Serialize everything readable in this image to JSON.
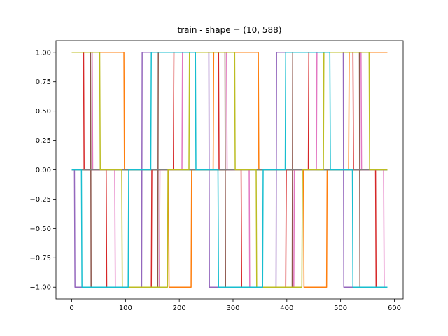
{
  "chart_data": {
    "type": "line",
    "title": "train - shape = (10, 588)",
    "xlabel": "",
    "ylabel": "",
    "xlim": [
      -29.35,
      616.35
    ],
    "ylim": [
      -1.1,
      1.1
    ],
    "x_ticks": [
      0,
      100,
      200,
      300,
      400,
      500,
      600
    ],
    "y_ticks": [
      -1.0,
      -0.75,
      -0.5,
      -0.25,
      0.0,
      0.25,
      0.5,
      0.75,
      1.0
    ],
    "y_tick_labels": [
      "−1.00",
      "−0.75",
      "−0.50",
      "−0.25",
      "0.00",
      "0.25",
      "0.50",
      "0.75",
      "1.00"
    ],
    "n_points": 588,
    "grid": false,
    "series": [
      {
        "color": "#1f77b4",
        "step_x": [
          0,
          587
        ],
        "step_y": [
          0,
          0
        ]
      },
      {
        "color": "#ff7f0e",
        "step_x": [
          0,
          97,
          98,
          180,
          181,
          222,
          223,
          263,
          264,
          347,
          348,
          431,
          432,
          474,
          475,
          515,
          516,
          587
        ],
        "step_y": [
          1,
          1,
          0,
          0,
          -1,
          -1,
          0,
          0,
          1,
          1,
          0,
          0,
          -1,
          -1,
          0,
          0,
          1,
          1
        ]
      },
      {
        "color": "#2ca02c",
        "step_x": [
          0,
          587
        ],
        "step_y": [
          0,
          0
        ]
      },
      {
        "color": "#d62728",
        "step_x": [
          0,
          22,
          23,
          64,
          65,
          148,
          149,
          189,
          190,
          273,
          274,
          315,
          316,
          398,
          399,
          440,
          441,
          523,
          524,
          565,
          566,
          587
        ],
        "step_y": [
          1,
          1,
          0,
          0,
          -1,
          -1,
          0,
          0,
          1,
          1,
          0,
          0,
          -1,
          -1,
          0,
          0,
          1,
          1,
          0,
          0,
          -1,
          -1
        ]
      },
      {
        "color": "#9467bd",
        "step_x": [
          0,
          5,
          6,
          130,
          131,
          255,
          256,
          380,
          381,
          505,
          506,
          587
        ],
        "step_y": [
          0,
          0,
          -1,
          -1,
          1,
          1,
          -1,
          -1,
          1,
          1,
          -1,
          -1
        ]
      },
      {
        "color": "#8c564b",
        "step_x": [
          0,
          35,
          36,
          160,
          161,
          285,
          286,
          410,
          411,
          535,
          536,
          587
        ],
        "step_y": [
          1,
          1,
          -1,
          -1,
          1,
          1,
          -1,
          -1,
          1,
          1,
          -1,
          -1
        ]
      },
      {
        "color": "#e377c2",
        "step_x": [
          0,
          38,
          39,
          80,
          81,
          163,
          164,
          205,
          206,
          288,
          289,
          330,
          331,
          413,
          414,
          455,
          456,
          538,
          539,
          580,
          581,
          587
        ],
        "step_y": [
          1,
          1,
          0,
          0,
          -1,
          -1,
          0,
          0,
          1,
          1,
          0,
          0,
          -1,
          -1,
          0,
          0,
          1,
          1,
          0,
          0,
          -1,
          -1
        ]
      },
      {
        "color": "#7f7f7f",
        "step_x": [
          0,
          587
        ],
        "step_y": [
          0,
          0
        ]
      },
      {
        "color": "#bcbd22",
        "step_x": [
          0,
          52,
          53,
          93,
          94,
          178,
          179,
          218,
          219,
          303,
          304,
          343,
          344,
          428,
          429,
          468,
          469,
          553,
          554,
          587
        ],
        "step_y": [
          1,
          1,
          0,
          0,
          -1,
          -1,
          0,
          0,
          1,
          1,
          0,
          0,
          -1,
          -1,
          0,
          0,
          1,
          1,
          0,
          0
        ]
      },
      {
        "color": "#17becf",
        "step_x": [
          0,
          18,
          19,
          105,
          106,
          147,
          148,
          230,
          231,
          272,
          273,
          355,
          356,
          397,
          398,
          480,
          481,
          522,
          523,
          587
        ],
        "step_y": [
          0,
          0,
          -1,
          -1,
          0,
          0,
          1,
          1,
          0,
          0,
          -1,
          -1,
          0,
          0,
          1,
          1,
          0,
          0,
          -1,
          -1
        ]
      }
    ]
  }
}
